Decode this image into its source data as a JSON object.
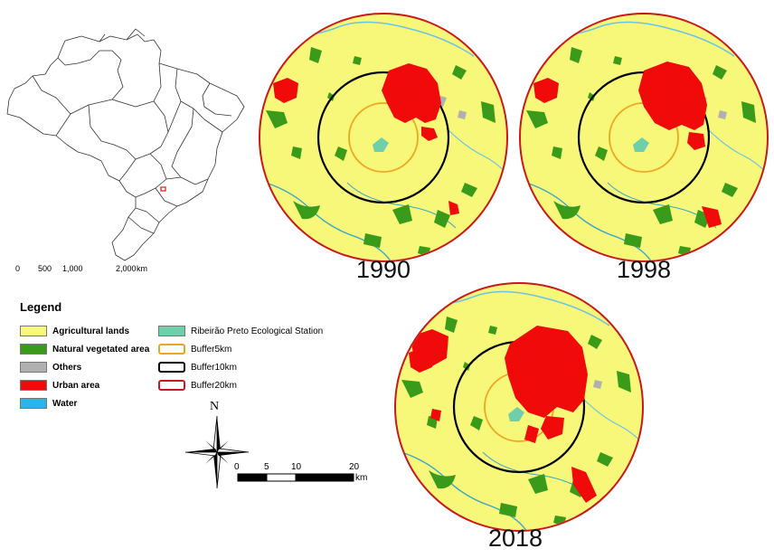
{
  "years": {
    "map1": "1990",
    "map2": "1998",
    "map3": "2018"
  },
  "colors": {
    "agricultural": "#f7f77a",
    "natural": "#3a9b1a",
    "others": "#b0b0b0",
    "urban": "#f00a0a",
    "water": "#29b5e8",
    "station": "#6fcfaa",
    "buffer5": "#f0a520",
    "buffer10": "#000000",
    "buffer20": "#c8191e"
  },
  "legend": {
    "title": "Legend",
    "items": [
      {
        "label": "Agricultural lands",
        "color": "#f7f77a"
      },
      {
        "label": "Natural vegetated area",
        "color": "#3a9b1a"
      },
      {
        "label": "Others",
        "color": "#b0b0b0"
      },
      {
        "label": "Urban area",
        "color": "#f00a0a"
      },
      {
        "label": "Water",
        "color": "#29b5e8"
      },
      {
        "label": "Ribeirão Preto Ecological Station",
        "color": "#6fcfaa"
      },
      {
        "label": "Buffer5km",
        "color": "#f0a520"
      },
      {
        "label": "Buffer10km",
        "color": "#000000"
      },
      {
        "label": "Buffer20km",
        "color": "#c8191e"
      }
    ]
  },
  "brazil_scale": {
    "t0": "0",
    "t1": "500",
    "t2": "1,000",
    "t3": "2,000",
    "unit": "km"
  },
  "map_scale": {
    "t0": "0",
    "t1": "5",
    "t2": "10",
    "t3": "20",
    "unit": "km"
  },
  "north_label": "N"
}
